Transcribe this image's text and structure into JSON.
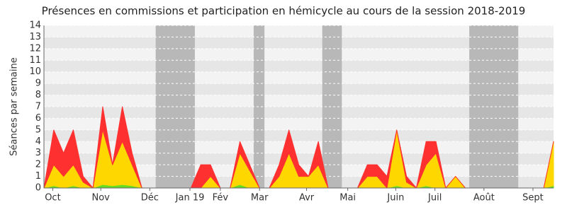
{
  "chart_data": {
    "type": "stacked-area",
    "title": "Présences en commissions et participation en hémicycle au cours de la session 2018-2019",
    "y_label": "Séances par semaine",
    "x": [
      0,
      1,
      2,
      3,
      4,
      5,
      6,
      7,
      8,
      9,
      10,
      11,
      12,
      13,
      14,
      15,
      16,
      17,
      18,
      19,
      20,
      21,
      22,
      23,
      24,
      25,
      26,
      27,
      28,
      29,
      30,
      31,
      32,
      33,
      34,
      35,
      36,
      37,
      38,
      39,
      40,
      41,
      42,
      43,
      44,
      45,
      46,
      47,
      48,
      49,
      50,
      51,
      52
    ],
    "xlim": [
      0,
      52
    ],
    "xticks": [
      {
        "value": 0.9,
        "label": "Oct"
      },
      {
        "value": 5.8,
        "label": "Nov"
      },
      {
        "value": 10.8,
        "label": "Déc"
      },
      {
        "value": 14.9,
        "label": "Jan 19"
      },
      {
        "value": 18,
        "label": "Fév"
      },
      {
        "value": 22,
        "label": "Mar"
      },
      {
        "value": 26.8,
        "label": "Avr"
      },
      {
        "value": 31,
        "label": "Mai"
      },
      {
        "value": 35.9,
        "label": "Juin"
      },
      {
        "value": 39.9,
        "label": "Juil"
      },
      {
        "value": 44.9,
        "label": "Août"
      },
      {
        "value": 49.9,
        "label": "Sept"
      }
    ],
    "ylim": [
      0,
      14
    ],
    "yticks": [
      0,
      1,
      2,
      3,
      4,
      5,
      6,
      7,
      8,
      9,
      10,
      11,
      12,
      13,
      14
    ],
    "grid": true,
    "shaded_periods": [
      [
        11.4,
        15.4
      ],
      [
        21.4,
        22.5
      ],
      [
        28.4,
        30.4
      ],
      [
        43.4,
        48.4
      ]
    ],
    "shade_color": "#b8b8b8",
    "series": [
      {
        "color": "#66dd22",
        "values": [
          0,
          0.2,
          0,
          0.2,
          0,
          0,
          0.3,
          0.2,
          0.3,
          0.2,
          0,
          0,
          0,
          0,
          0,
          0,
          0,
          0,
          0,
          0,
          0.3,
          0,
          0,
          0,
          0,
          0,
          0,
          0,
          0,
          0,
          0,
          0,
          0,
          0,
          0,
          0,
          0.2,
          0,
          0,
          0.2,
          0,
          0,
          0,
          0,
          0,
          0,
          0,
          0,
          0,
          0,
          0,
          0,
          0.2
        ]
      },
      {
        "color": "#ffd700",
        "values": [
          0,
          1.8,
          1,
          1.8,
          0.5,
          0,
          4.7,
          1.8,
          3.7,
          1.8,
          0,
          0,
          0,
          0,
          0,
          0,
          0,
          1,
          0,
          0,
          2.7,
          1.5,
          0,
          0,
          1,
          3,
          1,
          1,
          2,
          0,
          0,
          0,
          0,
          1,
          1,
          0,
          4.8,
          0.5,
          0,
          1.8,
          3,
          0,
          1,
          0,
          0,
          0,
          0,
          0,
          0,
          0,
          0,
          0,
          3.8
        ]
      },
      {
        "color": "#ff3030",
        "values": [
          0,
          3,
          2,
          3,
          0.5,
          0,
          2,
          0,
          3,
          1,
          0,
          0,
          0,
          0,
          0,
          0,
          2,
          1,
          0,
          0,
          1,
          0.5,
          0,
          0,
          1,
          2,
          1,
          0,
          2,
          0,
          0,
          0,
          0,
          1,
          1,
          1,
          0,
          0.5,
          0,
          2,
          1,
          0,
          0,
          0,
          0,
          0,
          0,
          0,
          0,
          0,
          0,
          0,
          0
        ]
      }
    ]
  }
}
